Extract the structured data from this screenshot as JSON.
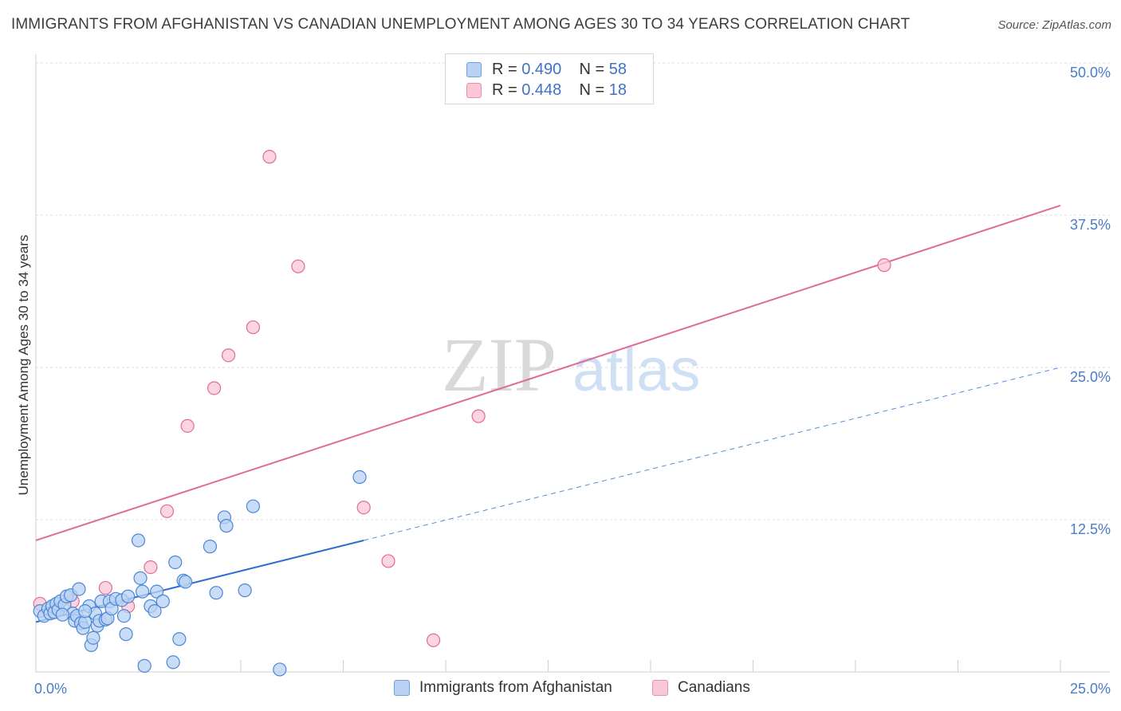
{
  "title": "IMMIGRANTS FROM AFGHANISTAN VS CANADIAN UNEMPLOYMENT AMONG AGES 30 TO 34 YEARS CORRELATION CHART",
  "source": "Source: ZipAtlas.com",
  "watermark": {
    "zip": "ZIP",
    "atlas": "atlas"
  },
  "colors": {
    "blue": "#4a87d6",
    "blue_fill": "#b9d2f3",
    "blue_line": "#2f6fd0",
    "pink": "#e06c96",
    "pink_fill": "#f9c7d6",
    "pink_line": "#e06c96",
    "tick_text": "#4a7cc9",
    "grid": "#dcdcdc"
  },
  "legend": {
    "rows": [
      {
        "r_label": "R =",
        "r_value": "0.490",
        "n_label": "N =",
        "n_value": "58",
        "series": "blue"
      },
      {
        "r_label": "R =",
        "r_value": "0.448",
        "n_label": "N =",
        "n_value": "18",
        "series": "pink"
      }
    ]
  },
  "bottom_legend": [
    "Immigrants from Afghanistan",
    "Canadians"
  ],
  "chart_data": {
    "type": "scatter",
    "title": "IMMIGRANTS FROM AFGHANISTAN VS CANADIAN UNEMPLOYMENT AMONG AGES 30 TO 34 YEARS CORRELATION CHART",
    "xlabel": "",
    "ylabel": "Unemployment Among Ages 30 to 34 years",
    "xlim": [
      0,
      25
    ],
    "ylim": [
      0,
      50
    ],
    "x_tick_labels": [
      "0.0%",
      "25.0%"
    ],
    "y_ticks": [
      12.5,
      25.0,
      37.5,
      50.0
    ],
    "y_tick_labels": [
      "12.5%",
      "25.0%",
      "37.5%",
      "50.0%"
    ],
    "grid": true,
    "series": [
      {
        "name": "Immigrants from Afghanistan",
        "color": "blue",
        "r": 0.49,
        "n": 58,
        "trend": {
          "x0": 0,
          "y0": 4.1,
          "x1": 8.0,
          "y1": 10.8,
          "dashed_to_x": 25,
          "dashed_to_y": 25.0
        },
        "points": [
          [
            0.1,
            5.0
          ],
          [
            0.2,
            4.6
          ],
          [
            0.3,
            5.2
          ],
          [
            0.35,
            4.8
          ],
          [
            0.4,
            5.4
          ],
          [
            0.45,
            4.9
          ],
          [
            0.5,
            5.6
          ],
          [
            0.55,
            5.1
          ],
          [
            0.6,
            5.8
          ],
          [
            0.7,
            5.5
          ],
          [
            0.75,
            6.2
          ],
          [
            0.85,
            6.3
          ],
          [
            0.9,
            4.8
          ],
          [
            0.95,
            4.2
          ],
          [
            1.0,
            4.6
          ],
          [
            1.05,
            6.8
          ],
          [
            1.1,
            4.0
          ],
          [
            1.15,
            3.6
          ],
          [
            1.2,
            4.1
          ],
          [
            1.3,
            5.4
          ],
          [
            1.35,
            2.2
          ],
          [
            1.4,
            2.8
          ],
          [
            1.45,
            4.8
          ],
          [
            1.5,
            3.8
          ],
          [
            1.55,
            4.2
          ],
          [
            1.6,
            5.8
          ],
          [
            1.7,
            4.3
          ],
          [
            1.75,
            4.4
          ],
          [
            1.8,
            5.8
          ],
          [
            1.85,
            5.2
          ],
          [
            1.95,
            6.0
          ],
          [
            2.1,
            5.9
          ],
          [
            2.15,
            4.6
          ],
          [
            2.2,
            3.1
          ],
          [
            2.25,
            6.2
          ],
          [
            2.5,
            10.8
          ],
          [
            2.55,
            7.7
          ],
          [
            2.6,
            6.6
          ],
          [
            2.65,
            0.5
          ],
          [
            2.8,
            5.4
          ],
          [
            2.9,
            5.0
          ],
          [
            2.95,
            6.6
          ],
          [
            3.1,
            5.8
          ],
          [
            3.35,
            0.8
          ],
          [
            3.4,
            9.0
          ],
          [
            3.5,
            2.7
          ],
          [
            3.6,
            7.5
          ],
          [
            3.65,
            7.4
          ],
          [
            4.25,
            10.3
          ],
          [
            4.4,
            6.5
          ],
          [
            4.6,
            12.7
          ],
          [
            4.65,
            12.0
          ],
          [
            5.1,
            6.7
          ],
          [
            5.3,
            13.6
          ],
          [
            5.95,
            0.2
          ],
          [
            7.9,
            16.0
          ],
          [
            1.2,
            5.0
          ],
          [
            0.65,
            4.7
          ]
        ]
      },
      {
        "name": "Canadians",
        "color": "pink",
        "r": 0.448,
        "n": 18,
        "trend": {
          "x0": 0,
          "y0": 10.8,
          "x1": 25,
          "y1": 38.3
        },
        "points": [
          [
            0.1,
            5.6
          ],
          [
            0.4,
            5.2
          ],
          [
            0.9,
            5.8
          ],
          [
            1.7,
            6.9
          ],
          [
            2.25,
            5.4
          ],
          [
            2.8,
            8.6
          ],
          [
            3.2,
            13.2
          ],
          [
            3.7,
            20.2
          ],
          [
            4.35,
            23.3
          ],
          [
            4.7,
            26.0
          ],
          [
            5.3,
            28.3
          ],
          [
            5.7,
            42.3
          ],
          [
            6.4,
            33.3
          ],
          [
            8.0,
            13.5
          ],
          [
            8.6,
            9.1
          ],
          [
            9.7,
            2.6
          ],
          [
            10.8,
            21.0
          ],
          [
            20.7,
            33.4
          ]
        ]
      }
    ]
  }
}
